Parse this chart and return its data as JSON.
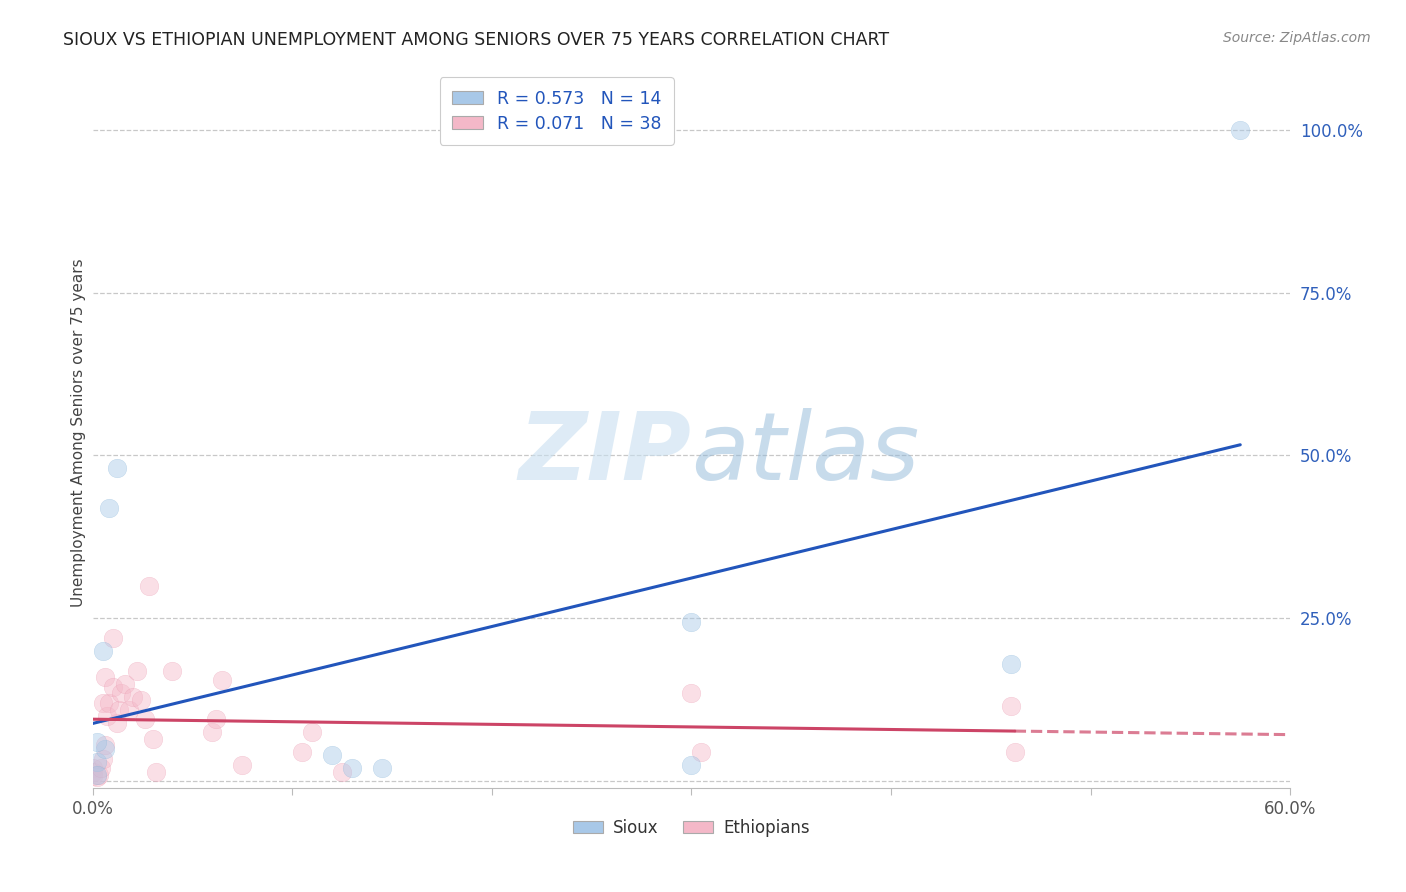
{
  "title": "SIOUX VS ETHIOPIAN UNEMPLOYMENT AMONG SENIORS OVER 75 YEARS CORRELATION CHART",
  "source": "Source: ZipAtlas.com",
  "ylabel": "Unemployment Among Seniors over 75 years",
  "watermark": "ZIPatlas",
  "xlim": [
    0.0,
    0.6
  ],
  "ylim": [
    -0.01,
    1.08
  ],
  "xticks": [
    0.0,
    0.1,
    0.2,
    0.3,
    0.4,
    0.5,
    0.6
  ],
  "xticklabels": [
    "0.0%",
    "",
    "",
    "",
    "",
    "",
    "60.0%"
  ],
  "yticks": [
    0.0,
    0.25,
    0.5,
    0.75,
    1.0
  ],
  "yticklabels": [
    "",
    "25.0%",
    "50.0%",
    "75.0%",
    "100.0%"
  ],
  "sioux_color": "#a8c8e8",
  "sioux_edge_color": "#7bafd4",
  "ethiopian_color": "#f4b8c8",
  "ethiopian_edge_color": "#e890a8",
  "sioux_line_color": "#2255bb",
  "ethiopian_line_color": "#cc4466",
  "sioux_R": 0.573,
  "sioux_N": 14,
  "ethiopian_R": 0.071,
  "ethiopian_N": 38,
  "sioux_points": [
    [
      0.005,
      0.2
    ],
    [
      0.008,
      0.42
    ],
    [
      0.012,
      0.48
    ],
    [
      0.002,
      0.03
    ],
    [
      0.002,
      0.01
    ],
    [
      0.006,
      0.05
    ],
    [
      0.002,
      0.06
    ],
    [
      0.12,
      0.04
    ],
    [
      0.13,
      0.02
    ],
    [
      0.145,
      0.02
    ],
    [
      0.3,
      0.245
    ],
    [
      0.46,
      0.18
    ],
    [
      0.575,
      1.0
    ],
    [
      0.3,
      0.025
    ]
  ],
  "ethiopian_points": [
    [
      0.0,
      0.02
    ],
    [
      0.0,
      0.015
    ],
    [
      0.0,
      0.008
    ],
    [
      0.002,
      0.006
    ],
    [
      0.003,
      0.01
    ],
    [
      0.004,
      0.02
    ],
    [
      0.005,
      0.035
    ],
    [
      0.006,
      0.055
    ],
    [
      0.005,
      0.12
    ],
    [
      0.006,
      0.16
    ],
    [
      0.007,
      0.1
    ],
    [
      0.008,
      0.12
    ],
    [
      0.01,
      0.145
    ],
    [
      0.01,
      0.22
    ],
    [
      0.012,
      0.09
    ],
    [
      0.013,
      0.11
    ],
    [
      0.014,
      0.135
    ],
    [
      0.016,
      0.15
    ],
    [
      0.018,
      0.11
    ],
    [
      0.02,
      0.13
    ],
    [
      0.022,
      0.17
    ],
    [
      0.024,
      0.125
    ],
    [
      0.026,
      0.095
    ],
    [
      0.03,
      0.065
    ],
    [
      0.032,
      0.015
    ],
    [
      0.028,
      0.3
    ],
    [
      0.04,
      0.17
    ],
    [
      0.06,
      0.075
    ],
    [
      0.062,
      0.095
    ],
    [
      0.065,
      0.155
    ],
    [
      0.075,
      0.025
    ],
    [
      0.105,
      0.045
    ],
    [
      0.11,
      0.075
    ],
    [
      0.125,
      0.015
    ],
    [
      0.3,
      0.135
    ],
    [
      0.305,
      0.045
    ],
    [
      0.46,
      0.115
    ],
    [
      0.462,
      0.045
    ]
  ],
  "bg_color": "#ffffff",
  "grid_color": "#c8c8c8",
  "marker_size": 180,
  "marker_alpha": 0.45,
  "line_width": 2.2
}
